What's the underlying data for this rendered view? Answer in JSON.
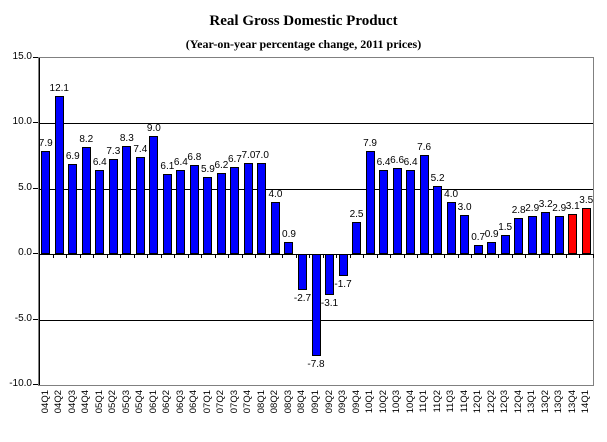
{
  "chart_data": {
    "type": "bar",
    "title": "Real Gross Domestic Product",
    "subtitle": "(Year-on-year percentage change, 2011 prices)",
    "categories": [
      "04Q1",
      "04Q2",
      "04Q3",
      "04Q4",
      "05Q1",
      "05Q2",
      "05Q3",
      "05Q4",
      "06Q1",
      "06Q2",
      "06Q3",
      "06Q4",
      "07Q1",
      "07Q2",
      "07Q3",
      "07Q4",
      "08Q1",
      "08Q2",
      "08Q3",
      "08Q4",
      "09Q1",
      "09Q2",
      "09Q3",
      "09Q4",
      "10Q1",
      "10Q2",
      "10Q3",
      "10Q4",
      "11Q1",
      "11Q2",
      "11Q3",
      "11Q4",
      "12Q1",
      "12Q2",
      "12Q3",
      "12Q4",
      "13Q1",
      "13Q2",
      "13Q3",
      "13Q4",
      "14Q1"
    ],
    "values": [
      7.9,
      12.1,
      6.9,
      8.2,
      6.4,
      7.3,
      8.3,
      7.4,
      9.0,
      6.1,
      6.4,
      6.8,
      5.9,
      6.2,
      6.7,
      7.0,
      7.0,
      4.0,
      0.9,
      -2.7,
      -7.8,
      -3.1,
      -1.7,
      2.5,
      7.9,
      6.4,
      6.6,
      6.4,
      7.6,
      5.2,
      4.0,
      3.0,
      0.7,
      0.9,
      1.5,
      2.8,
      2.9,
      3.2,
      2.9,
      3.1,
      3.5
    ],
    "value_labels": [
      "7.9",
      "12.1",
      "6.9",
      "8.2",
      "6.4",
      "7.3",
      "8.3",
      "7.4",
      "9.0",
      "6.1",
      "6.4",
      "6.8",
      "5.9",
      "6.2",
      "6.7",
      "7.0",
      "7.0",
      "4.0",
      "0.9",
      "-2.7",
      "-7.8",
      "-3.1",
      "-1.7",
      "2.5",
      "7.9",
      "6.4",
      "6.6",
      "6.4",
      "7.6",
      "5.2",
      "4.0",
      "3.0",
      "0.7",
      "0.9",
      "1.5",
      "2.8",
      "2.9",
      "3.2",
      "2.9",
      "3.1",
      "3.5"
    ],
    "ylim": [
      -10,
      15
    ],
    "ytick_values": [
      15,
      10,
      5,
      0,
      -5,
      -10
    ],
    "ytick_labels": [
      "15.0",
      "10.0",
      "5.0",
      "0.0",
      "-5.0",
      "-10.0"
    ],
    "grid": true,
    "legend": "none",
    "bar_color": "#0000FF",
    "highlight_color": "#FF0000",
    "highlight_indices": [
      39,
      40
    ],
    "bar_border_color": "#000000",
    "gridline_color": "#000000",
    "plot_border_color": "#808080"
  }
}
